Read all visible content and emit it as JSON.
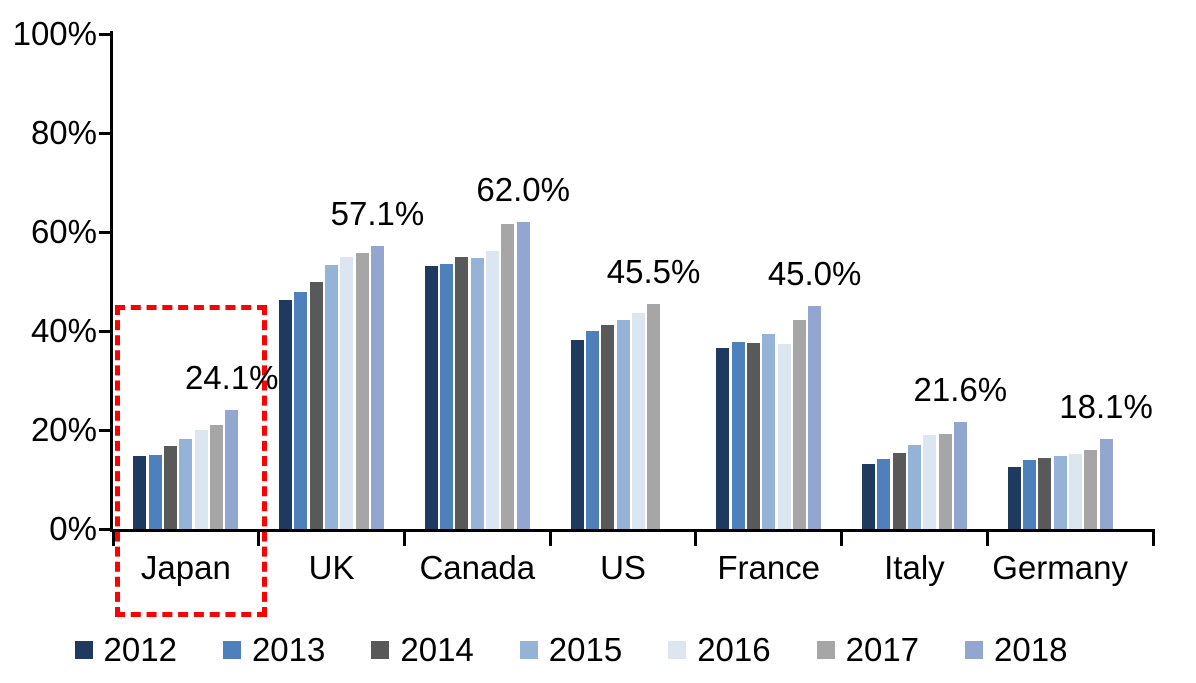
{
  "chart_data": {
    "type": "bar",
    "title": "",
    "xlabel": "",
    "ylabel": "",
    "ylim": [
      0,
      100
    ],
    "yticks": [
      "0%",
      "20%",
      "40%",
      "60%",
      "80%",
      "100%"
    ],
    "grid": false,
    "legend_position": "bottom",
    "categories": [
      "Japan",
      "UK",
      "Canada",
      "US",
      "France",
      "Italy",
      "Germany"
    ],
    "series": [
      {
        "name": "2012",
        "color": "#1E3A5E",
        "values": [
          14.8,
          46.3,
          53.1,
          38.2,
          36.5,
          13.2,
          12.5
        ]
      },
      {
        "name": "2013",
        "color": "#4E80BC",
        "values": [
          14.9,
          47.8,
          53.5,
          40.0,
          37.7,
          14.1,
          13.9
        ]
      },
      {
        "name": "2014",
        "color": "#595959",
        "values": [
          16.7,
          50.0,
          55.0,
          41.2,
          37.5,
          15.3,
          14.3
        ]
      },
      {
        "name": "2015",
        "color": "#95B3D7",
        "values": [
          18.2,
          53.3,
          54.7,
          42.2,
          39.3,
          16.9,
          14.8
        ]
      },
      {
        "name": "2016",
        "color": "#DCE6F1",
        "values": [
          19.9,
          54.9,
          56.2,
          43.6,
          37.3,
          18.9,
          15.2
        ]
      },
      {
        "name": "2017",
        "color": "#A6A6A6",
        "values": [
          21.1,
          55.8,
          61.7,
          45.5,
          42.3,
          19.2,
          15.9
        ]
      },
      {
        "name": "2018",
        "color": "#93A6CF",
        "values": [
          24.1,
          57.1,
          62.0,
          null,
          45.0,
          21.6,
          18.1
        ]
      }
    ],
    "data_labels": [
      {
        "category": "Japan",
        "series": "2018",
        "text": "24.1%"
      },
      {
        "category": "UK",
        "series": "2018",
        "text": "57.1%"
      },
      {
        "category": "Canada",
        "series": "2018",
        "text": "62.0%"
      },
      {
        "category": "US",
        "series": "2017",
        "text": "45.5%"
      },
      {
        "category": "France",
        "series": "2018",
        "text": "45.0%"
      },
      {
        "category": "Italy",
        "series": "2018",
        "text": "21.6%"
      },
      {
        "category": "Germany",
        "series": "2018",
        "text": "18.1%"
      }
    ],
    "annotations": {
      "highlight_box": {
        "category": "Japan",
        "color": "#FF0000",
        "style": "dashed"
      }
    },
    "axis_color": "#000000",
    "text_color": "#000000"
  }
}
